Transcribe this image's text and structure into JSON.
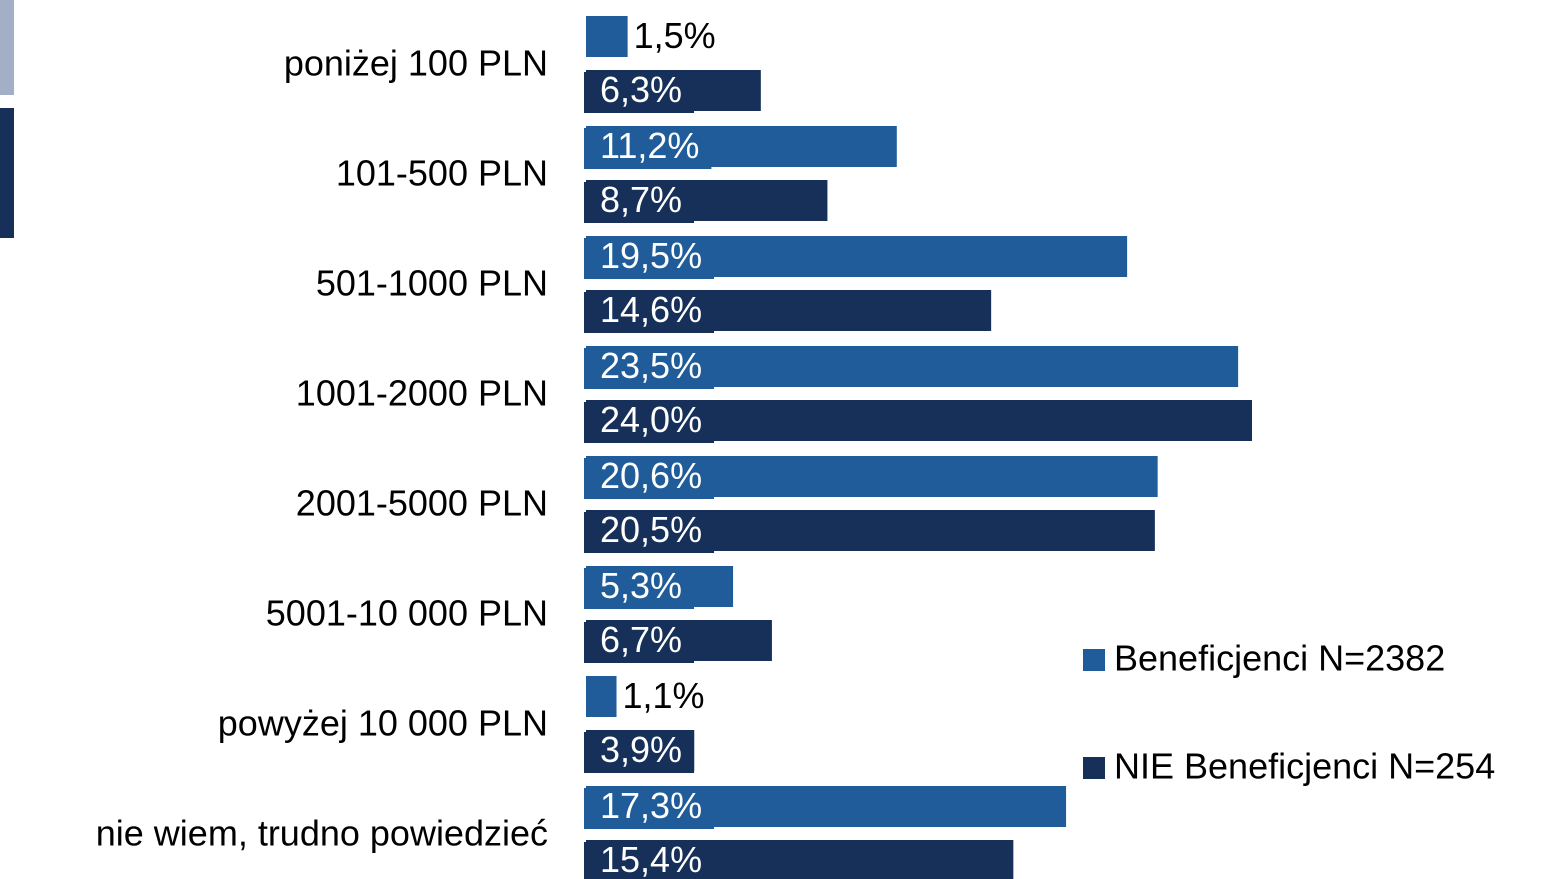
{
  "chart_data": {
    "type": "bar",
    "orientation": "horizontal",
    "categories": [
      "poniżej 100 PLN",
      "101-500 PLN",
      "501-1000 PLN",
      "1001-2000 PLN",
      "2001-5000 PLN",
      "5001-10 000 PLN",
      "powyżej 10 000 PLN",
      "nie wiem, trudno powiedzieć"
    ],
    "series": [
      {
        "name": "Beneficjenci N=2382",
        "color": "#1f5c99",
        "values": [
          1.5,
          11.2,
          19.5,
          23.5,
          20.6,
          5.3,
          1.1,
          17.3
        ],
        "value_labels": [
          "1,5%",
          "11,2%",
          "19,5%",
          "23,5%",
          "20,6%",
          "5,3%",
          "1,1%",
          "17,3%"
        ]
      },
      {
        "name": "NIE Beneficjenci N=254",
        "color": "#17305a",
        "values": [
          6.3,
          8.7,
          14.6,
          24.0,
          20.5,
          6.7,
          3.9,
          15.4
        ],
        "value_labels": [
          "6,3%",
          "8,7%",
          "14,6%",
          "24,0%",
          "20,5%",
          "6,7%",
          "3,9%",
          "15,4%"
        ]
      }
    ],
    "legend": "right"
  }
}
